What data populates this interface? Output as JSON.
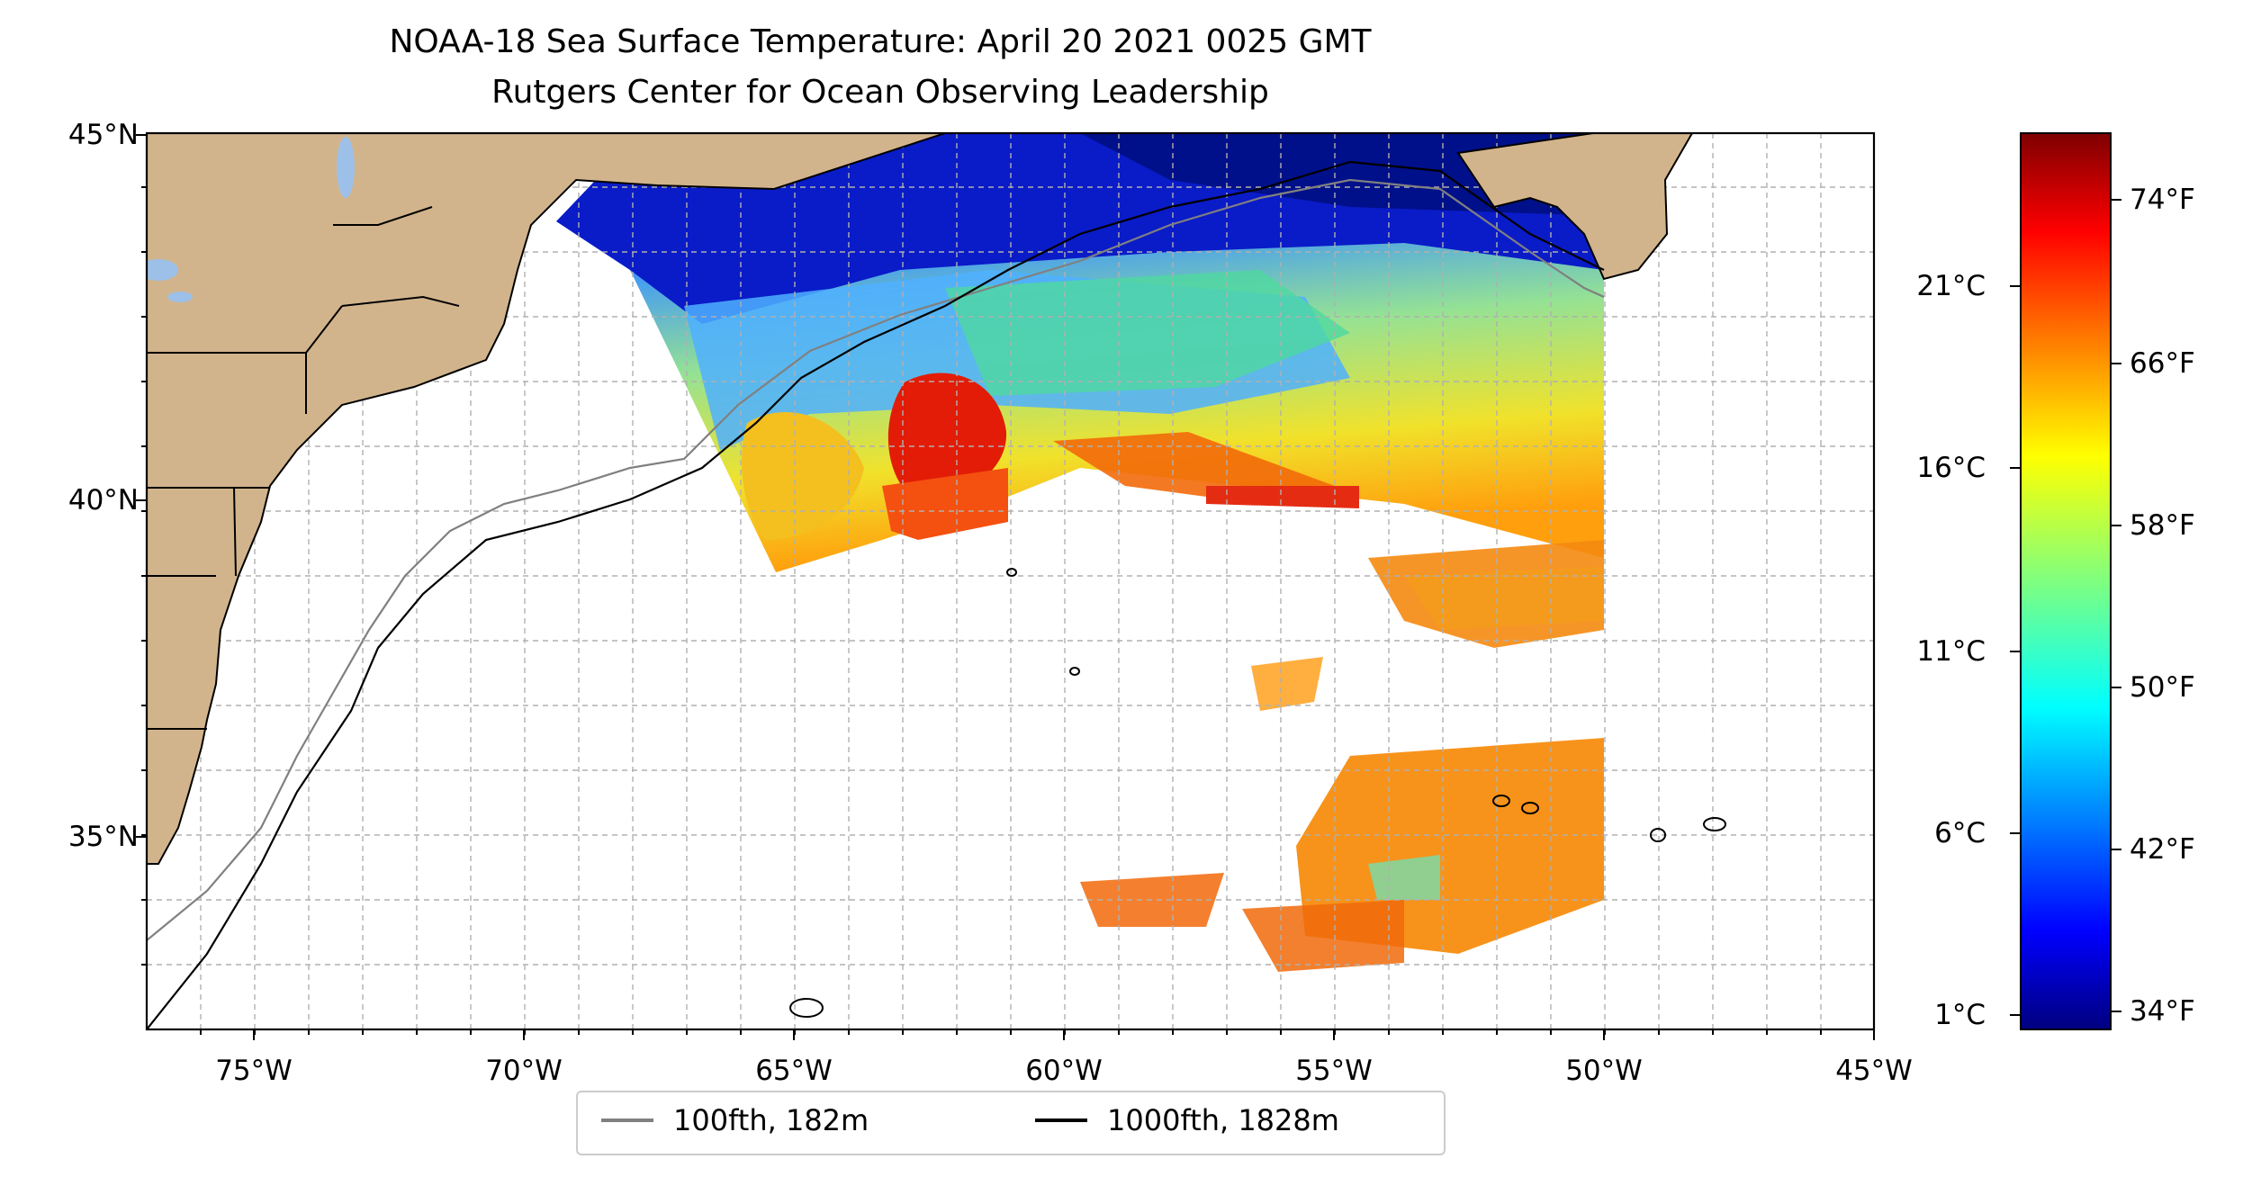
{
  "title_line1": "NOAA-18 Sea Surface Temperature: April 20 2021 0025 GMT",
  "title_line2": "Rutgers Center for Ocean Observing Leadership",
  "lon_ticks": [
    "75°W",
    "70°W",
    "65°W",
    "60°W",
    "55°W",
    "50°W",
    "45°W"
  ],
  "lat_ticks": [
    "45°N",
    "40°N",
    "35°N"
  ],
  "extent": {
    "lon_min": -77,
    "lon_max": -45,
    "lat_min": 32.3,
    "lat_max": 45
  },
  "colorbar": {
    "celsius_ticks": [
      "21°C",
      "16°C",
      "11°C",
      "6°C",
      "1°C"
    ],
    "fahrenheit_ticks": [
      "74°F",
      "66°F",
      "58°F",
      "50°F",
      "42°F",
      "34°F"
    ],
    "colormap": "jet"
  },
  "legend": {
    "items": [
      {
        "label": "100fth, 182m",
        "color": "#808080"
      },
      {
        "label": "1000fth, 1828m",
        "color": "#000000"
      }
    ]
  },
  "colors": {
    "land": "#D2B48C",
    "lakes": "#9DC0E8",
    "ocean_background": "#FFFFFF",
    "gridlines": "#B0B0B0"
  }
}
